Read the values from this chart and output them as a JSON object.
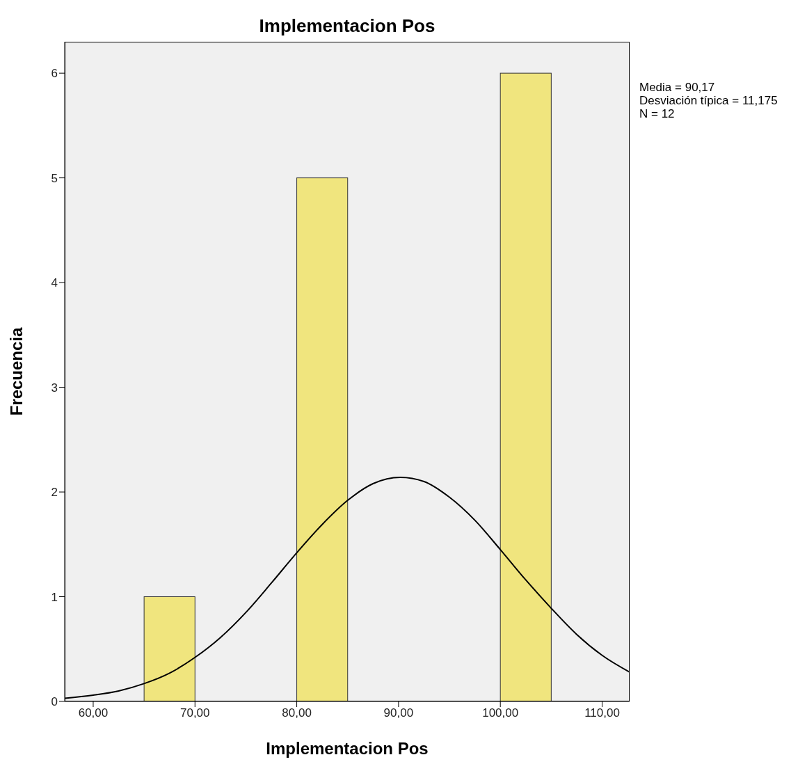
{
  "chart_data": {
    "type": "histogram",
    "title": "Implementacion Pos",
    "xlabel": "Implementacion Pos",
    "ylabel": "Frecuencia",
    "bins": [
      65,
      70,
      75,
      80,
      85,
      90,
      95,
      100,
      105
    ],
    "series": [
      {
        "color": "#f0e57e",
        "values": [
          1,
          0,
          0,
          5,
          0,
          0,
          0,
          6
        ]
      },
      {
        "type": "line",
        "color": "#000000",
        "x": [
          57.2,
          60,
          62.5,
          65,
          67.5,
          70,
          72.5,
          75,
          77.5,
          80,
          82.5,
          85,
          87.5,
          90.17,
          92.5,
          95,
          97.5,
          100,
          102.5,
          105,
          107.5,
          110,
          112.7
        ],
        "values": [
          0.03,
          0.06,
          0.1,
          0.17,
          0.27,
          0.42,
          0.61,
          0.85,
          1.13,
          1.42,
          1.69,
          1.92,
          2.08,
          2.14,
          2.1,
          1.95,
          1.73,
          1.45,
          1.16,
          0.89,
          0.64,
          0.44,
          0.28
        ]
      }
    ],
    "xlim": [
      57.2,
      112.7
    ],
    "xticks": [
      {
        "value": 60,
        "label": "60,00"
      },
      {
        "value": 70,
        "label": "70,00"
      },
      {
        "value": 80,
        "label": "80,00"
      },
      {
        "value": 90,
        "label": "90,00"
      },
      {
        "value": 100,
        "label": "100,00"
      },
      {
        "value": 110,
        "label": "110,00"
      }
    ],
    "ylim": [
      0,
      6.3
    ],
    "yticks": [
      0,
      1,
      2,
      3,
      4,
      5,
      6
    ],
    "grid": false,
    "marker": "none",
    "annotations": [
      "Media = 90,17",
      "Desviación típica = 11,175",
      "N = 12"
    ]
  }
}
